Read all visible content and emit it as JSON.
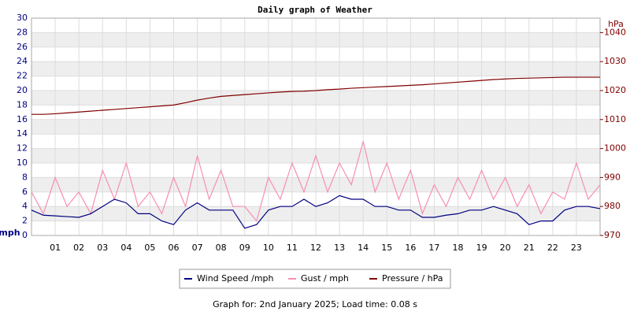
{
  "chart_data": {
    "type": "line",
    "title": "Daily graph of Weather",
    "ylabel": "mph",
    "y2label": "hPa",
    "footer": "Graph for: 2nd January 2025; Load time: 0.08 s",
    "x": [
      0,
      0.5,
      1,
      1.5,
      2,
      2.5,
      3,
      3.5,
      4,
      4.5,
      5,
      5.5,
      6,
      6.5,
      7,
      7.5,
      8,
      8.5,
      9,
      9.5,
      10,
      10.5,
      11,
      11.5,
      12,
      12.5,
      13,
      13.5,
      14,
      14.5,
      15,
      15.5,
      16,
      16.5,
      17,
      17.5,
      18,
      18.5,
      19,
      19.5,
      20,
      20.5,
      21,
      21.5,
      22,
      22.5,
      23,
      23.5,
      24
    ],
    "xlim": [
      0,
      24
    ],
    "xticks": [
      {
        "value": 1,
        "label": "01"
      },
      {
        "value": 2,
        "label": "02"
      },
      {
        "value": 3,
        "label": "03"
      },
      {
        "value": 4,
        "label": "04"
      },
      {
        "value": 5,
        "label": "05"
      },
      {
        "value": 6,
        "label": "06"
      },
      {
        "value": 7,
        "label": "07"
      },
      {
        "value": 8,
        "label": "08"
      },
      {
        "value": 9,
        "label": "09"
      },
      {
        "value": 10,
        "label": "10"
      },
      {
        "value": 11,
        "label": "11"
      },
      {
        "value": 12,
        "label": "12"
      },
      {
        "value": 13,
        "label": "13"
      },
      {
        "value": 14,
        "label": "14"
      },
      {
        "value": 15,
        "label": "15"
      },
      {
        "value": 16,
        "label": "16"
      },
      {
        "value": 17,
        "label": "17"
      },
      {
        "value": 18,
        "label": "18"
      },
      {
        "value": 19,
        "label": "19"
      },
      {
        "value": 20,
        "label": "20"
      },
      {
        "value": 21,
        "label": "21"
      },
      {
        "value": 22,
        "label": "22"
      },
      {
        "value": 23,
        "label": "23"
      }
    ],
    "ylim": [
      0,
      30
    ],
    "yticks": [
      0,
      2,
      4,
      6,
      8,
      10,
      12,
      14,
      16,
      18,
      20,
      22,
      24,
      26,
      28,
      30
    ],
    "y2lim": [
      970,
      1045
    ],
    "y2ticks": [
      970,
      980,
      990,
      1000,
      1010,
      1020,
      1030,
      1040
    ],
    "grid": true,
    "legend": "bottom",
    "series": [
      {
        "name": "Wind Speed /mph",
        "color": "#000080",
        "values": [
          3.5,
          2.8,
          2.7,
          2.6,
          2.5,
          3,
          4,
          5,
          4.5,
          3,
          3,
          2,
          1.5,
          3.5,
          4.5,
          3.5,
          3.5,
          3.5,
          1,
          1.5,
          3.5,
          4,
          4,
          5,
          4,
          4.5,
          5.5,
          5,
          5,
          4,
          4,
          3.5,
          3.5,
          2.5,
          2.5,
          2.8,
          3,
          3.5,
          3.5,
          4,
          3.5,
          3,
          1.5,
          2,
          2,
          3.5,
          4,
          4,
          3.7
        ]
      },
      {
        "name": "Gust / mph",
        "color": "#f78fb0",
        "values": [
          6,
          3,
          8,
          4,
          6,
          3,
          9,
          5,
          10,
          4,
          6,
          3,
          8,
          4,
          11,
          5,
          9,
          4,
          4,
          2,
          8,
          5,
          10,
          6,
          11,
          6,
          10,
          7,
          13,
          6,
          10,
          5,
          9,
          3,
          7,
          4,
          8,
          5,
          9,
          5,
          8,
          4,
          7,
          3,
          6,
          5,
          10,
          5,
          7
        ]
      },
      {
        "name": "Pressure / hPa",
        "color": "#800000",
        "axis": "y2",
        "values": [
          1011.8,
          1011.8,
          1012,
          1012.3,
          1012.6,
          1012.9,
          1013.2,
          1013.5,
          1013.8,
          1014.1,
          1014.4,
          1014.7,
          1015,
          1015.8,
          1016.7,
          1017.4,
          1018,
          1018.3,
          1018.6,
          1018.9,
          1019.2,
          1019.5,
          1019.7,
          1019.8,
          1020,
          1020.3,
          1020.5,
          1020.8,
          1021,
          1021.2,
          1021.4,
          1021.6,
          1021.8,
          1022,
          1022.3,
          1022.6,
          1022.9,
          1023.2,
          1023.5,
          1023.8,
          1024,
          1024.2,
          1024.3,
          1024.4,
          1024.5,
          1024.6,
          1024.6,
          1024.6,
          1024.6
        ]
      }
    ]
  }
}
